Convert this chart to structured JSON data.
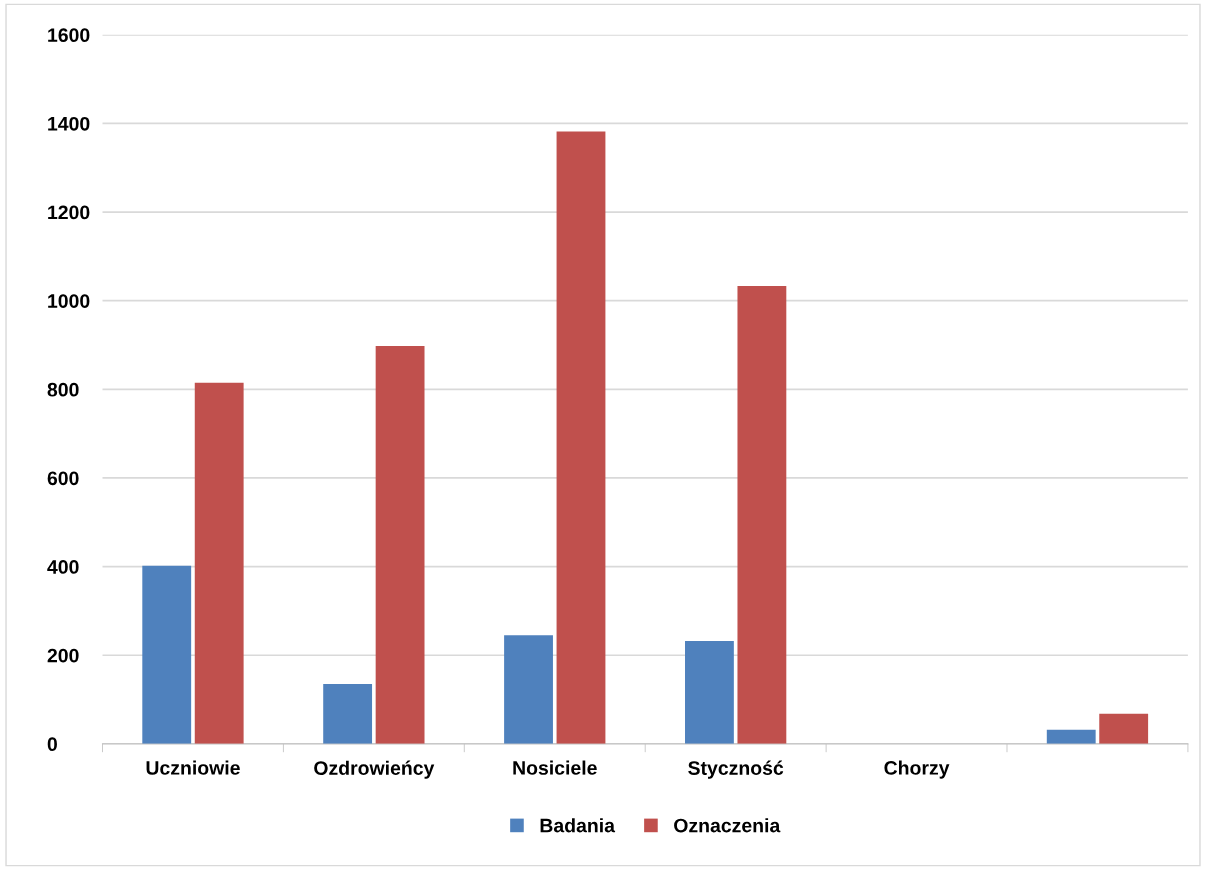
{
  "chart_data": {
    "type": "bar",
    "categories": [
      "Uczniowie",
      "Ozdrowieńcy",
      "Nosiciele",
      "Styczność",
      "Chorzy",
      null
    ],
    "series": [
      {
        "name": "Badania",
        "color": "#4f81bd",
        "values": [
          402,
          135,
          245,
          232,
          0,
          32
        ]
      },
      {
        "name": "Oznaczenia",
        "color": "#c0504d",
        "values": [
          815,
          898,
          1382,
          1033,
          0,
          68
        ]
      }
    ],
    "ylim": [
      0,
      1600
    ],
    "yticks": [
      0,
      200,
      400,
      600,
      800,
      1000,
      1200,
      1400,
      1600
    ],
    "grid": "y",
    "legend": "bottom"
  }
}
